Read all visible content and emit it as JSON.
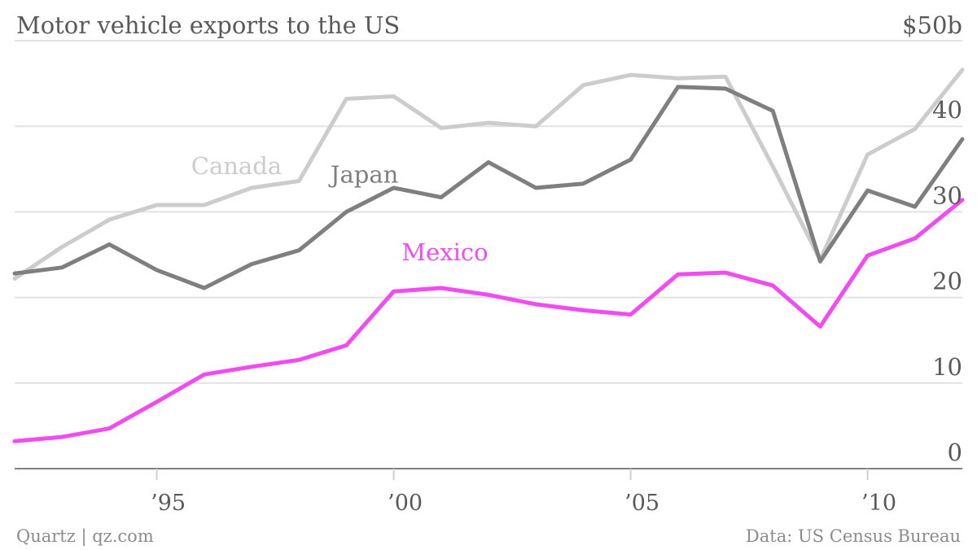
{
  "chart_data": {
    "type": "line",
    "title": "Motor vehicle exports to the US",
    "x": [
      1992,
      1993,
      1994,
      1995,
      1996,
      1997,
      1998,
      1999,
      2000,
      2001,
      2002,
      2003,
      2004,
      2005,
      2006,
      2007,
      2008,
      2009,
      2010,
      2011,
      2012
    ],
    "x_tick_labels": [
      {
        "value": 1995,
        "label": "’95"
      },
      {
        "value": 2000,
        "label": "’00"
      },
      {
        "value": 2005,
        "label": "’05"
      },
      {
        "value": 2010,
        "label": "’10"
      }
    ],
    "xlim": [
      1992,
      2012
    ],
    "y_ticks": [
      {
        "value": 0,
        "label": "0"
      },
      {
        "value": 10,
        "label": "10"
      },
      {
        "value": 20,
        "label": "20"
      },
      {
        "value": 30,
        "label": "30"
      },
      {
        "value": 40,
        "label": "40"
      },
      {
        "value": 50,
        "label": "$50b"
      }
    ],
    "ylim": [
      0,
      50
    ],
    "grid": true,
    "series": [
      {
        "name": "Canada",
        "color": "#cccccc",
        "values": [
          22.2,
          25.9,
          29.1,
          30.8,
          30.8,
          32.8,
          33.6,
          43.2,
          43.5,
          39.8,
          40.4,
          40.0,
          44.8,
          46.0,
          45.6,
          45.8,
          35.3,
          24.4,
          36.7,
          39.7,
          46.6
        ]
      },
      {
        "name": "Japan",
        "color": "#7f7f7f",
        "values": [
          22.8,
          23.5,
          26.2,
          23.2,
          21.1,
          23.9,
          25.5,
          30.0,
          32.8,
          31.7,
          35.8,
          32.8,
          33.3,
          36.1,
          44.6,
          44.4,
          41.8,
          24.2,
          32.5,
          30.6,
          38.5
        ]
      },
      {
        "name": "Mexico",
        "color": "#f04cf0",
        "values": [
          3.2,
          3.7,
          4.7,
          7.8,
          11.0,
          11.9,
          12.7,
          14.4,
          20.7,
          21.1,
          20.3,
          19.2,
          18.5,
          18.0,
          22.7,
          22.9,
          21.4,
          16.6,
          24.9,
          26.9,
          31.4
        ]
      }
    ],
    "footer_left": "Quartz | qz.com",
    "footer_right": "Data: US Census Bureau"
  }
}
